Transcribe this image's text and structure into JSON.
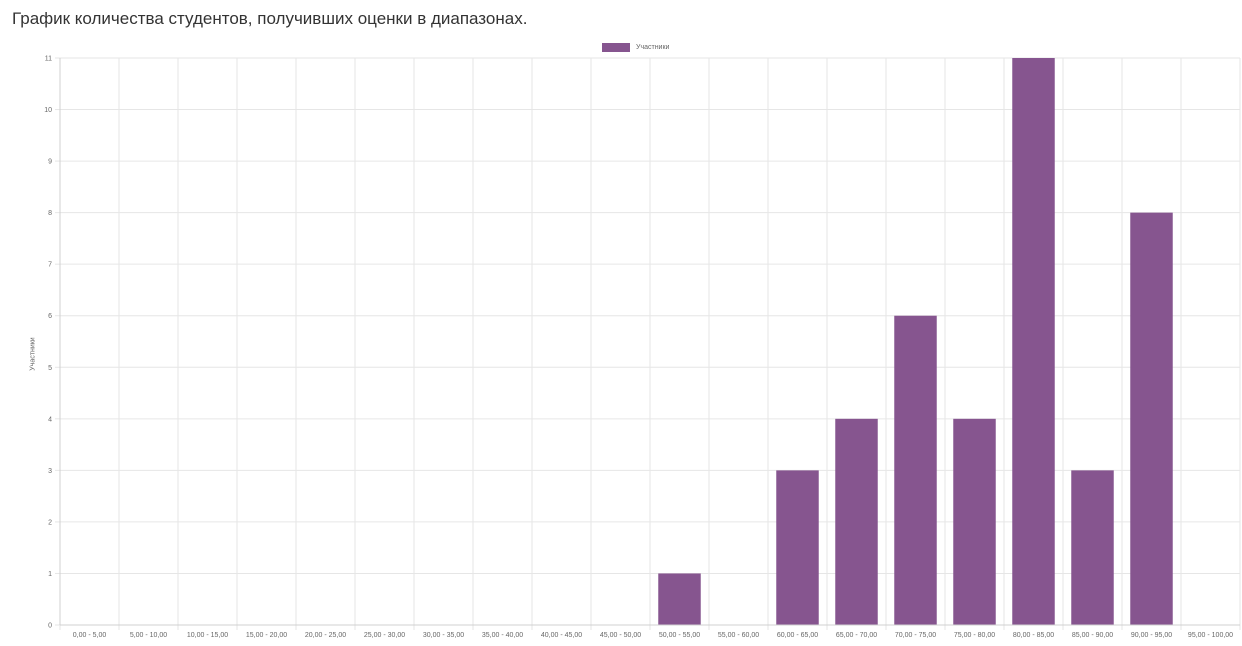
{
  "page": {
    "title": "График количества студентов, получивших оценки в диапазонах."
  },
  "colors": {
    "bar": "#86558f",
    "grid": "#e6e6e6",
    "tick_text": "#666666"
  },
  "chart_data": {
    "type": "bar",
    "categories": [
      "0,00 - 5,00",
      "5,00 - 10,00",
      "10,00 - 15,00",
      "15,00 - 20,00",
      "20,00 - 25,00",
      "25,00 - 30,00",
      "30,00 - 35,00",
      "35,00 - 40,00",
      "40,00 - 45,00",
      "45,00 - 50,00",
      "50,00 - 55,00",
      "55,00 - 60,00",
      "60,00 - 65,00",
      "65,00 - 70,00",
      "70,00 - 75,00",
      "75,00 - 80,00",
      "80,00 - 85,00",
      "85,00 - 90,00",
      "90,00 - 95,00",
      "95,00 - 100,00"
    ],
    "series": [
      {
        "name": "Участники",
        "values": [
          0,
          0,
          0,
          0,
          0,
          0,
          0,
          0,
          0,
          0,
          1,
          0,
          3,
          4,
          6,
          4,
          11,
          3,
          8,
          0
        ]
      }
    ],
    "ylabel": "Участники",
    "ylim": [
      0,
      11
    ],
    "yticks": [
      0,
      1,
      2,
      3,
      4,
      5,
      6,
      7,
      8,
      9,
      10,
      11
    ],
    "grid": true,
    "legend_position": "top-center"
  }
}
